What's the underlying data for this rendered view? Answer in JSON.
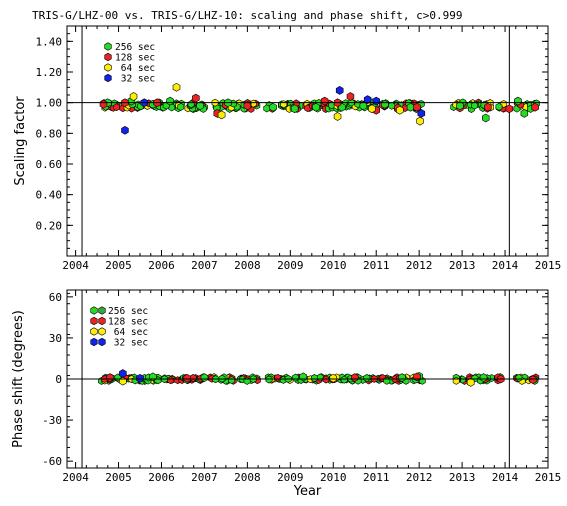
{
  "chart_data": [
    {
      "type": "scatter",
      "title": "TRIS-G/LHZ-00 vs. TRIS-G/LHZ-10: scaling and phase shift, c>0.999",
      "ylabel": "Scaling factor",
      "xlabel": "",
      "xlim": [
        2003.8,
        2015.0
      ],
      "ylim": [
        0.0,
        1.5
      ],
      "xticks": [
        "2004",
        "2005",
        "2006",
        "2007",
        "2008",
        "2009",
        "2010",
        "2011",
        "2012",
        "2013",
        "2014",
        "2015"
      ],
      "yticks": [
        "0.20",
        "0.40",
        "0.60",
        "0.80",
        "1.00",
        "1.20",
        "1.40"
      ],
      "reference_line": 1.0,
      "vlines": [
        2004.15,
        2014.1
      ],
      "legend": {
        "placement": "top-left",
        "entries": [
          {
            "label": "256 sec",
            "color": "#22dd22"
          },
          {
            "label": "128 sec",
            "color": "#ee2222"
          },
          {
            "label": " 64 sec",
            "color": "#ffee00"
          },
          {
            "label": " 32 sec",
            "color": "#1122ee"
          }
        ]
      },
      "bands": [
        [
          2004.6,
          2004.95
        ],
        [
          2004.95,
          2005.55
        ],
        [
          2005.55,
          2006.05
        ],
        [
          2006.05,
          2006.55
        ],
        [
          2006.55,
          2007.1
        ],
        [
          2007.1,
          2007.6
        ],
        [
          2007.6,
          2008.25
        ],
        [
          2008.45,
          2008.95
        ],
        [
          2008.95,
          2009.4
        ],
        [
          2009.4,
          2009.95
        ],
        [
          2009.95,
          2010.4
        ],
        [
          2010.4,
          2010.95
        ],
        [
          2010.95,
          2011.6
        ],
        [
          2011.6,
          2012.05
        ],
        [
          2012.8,
          2013.25
        ],
        [
          2013.25,
          2013.7
        ],
        [
          2013.8,
          2013.98
        ],
        [
          2014.25,
          2014.55
        ],
        [
          2014.55,
          2014.75
        ]
      ],
      "band_value": 0.98,
      "series": [
        {
          "name": "256 sec",
          "color": "#22dd22",
          "points": [
            [
              2004.75,
              1.0
            ],
            [
              2005.3,
              1.01
            ],
            [
              2005.8,
              0.99
            ],
            [
              2006.2,
              1.01
            ],
            [
              2006.9,
              0.98
            ],
            [
              2007.55,
              1.0
            ],
            [
              2008.6,
              0.97
            ],
            [
              2009.1,
              0.96
            ],
            [
              2009.6,
              0.97
            ],
            [
              2010.2,
              0.97
            ],
            [
              2010.7,
              0.98
            ],
            [
              2011.2,
              0.99
            ],
            [
              2011.8,
              0.97
            ],
            [
              2012.95,
              0.98
            ],
            [
              2013.55,
              0.9
            ],
            [
              2014.3,
              1.01
            ],
            [
              2014.45,
              0.93
            ]
          ]
        },
        {
          "name": "128 sec",
          "color": "#ee2222",
          "points": [
            [
              2004.65,
              0.99
            ],
            [
              2005.15,
              1.0
            ],
            [
              2005.9,
              1.0
            ],
            [
              2006.8,
              1.03
            ],
            [
              2007.3,
              0.93
            ],
            [
              2008.0,
              0.98
            ],
            [
              2009.8,
              1.01
            ],
            [
              2010.1,
              1.0
            ],
            [
              2010.4,
              1.04
            ],
            [
              2011.0,
              0.95
            ],
            [
              2011.95,
              0.97
            ],
            [
              2013.6,
              0.97
            ],
            [
              2014.1,
              0.96
            ],
            [
              2014.7,
              0.97
            ]
          ]
        },
        {
          "name": "64 sec",
          "color": "#ffee00",
          "points": [
            [
              2005.35,
              1.04
            ],
            [
              2006.35,
              1.1
            ],
            [
              2007.4,
              0.92
            ],
            [
              2010.1,
              0.91
            ],
            [
              2010.9,
              0.96
            ],
            [
              2011.55,
              0.95
            ],
            [
              2012.02,
              0.88
            ]
          ]
        },
        {
          "name": "32 sec",
          "color": "#1122ee",
          "points": [
            [
              2005.15,
              0.82
            ],
            [
              2005.6,
              1.0
            ],
            [
              2010.15,
              1.08
            ],
            [
              2010.8,
              1.02
            ],
            [
              2011.0,
              1.01
            ],
            [
              2012.05,
              0.93
            ]
          ]
        }
      ]
    },
    {
      "type": "scatter",
      "ylabel": "Phase shift (degrees)",
      "xlabel": "Year",
      "xlim": [
        2003.8,
        2015.0
      ],
      "ylim": [
        -65,
        65
      ],
      "xticks": [
        "2004",
        "2005",
        "2006",
        "2007",
        "2008",
        "2009",
        "2010",
        "2011",
        "2012",
        "2013",
        "2014",
        "2015"
      ],
      "yticks": [
        "-60",
        "-30",
        "0",
        "30",
        "60"
      ],
      "reference_line": 0,
      "vlines": [
        2004.15,
        2014.1
      ],
      "legend": {
        "placement": "top-left",
        "entries": [
          {
            "label": "256 sec",
            "color": "#22dd22"
          },
          {
            "label": "128 sec",
            "color": "#ee2222"
          },
          {
            "label": " 64 sec",
            "color": "#ffee00"
          },
          {
            "label": " 32 sec",
            "color": "#1122ee"
          }
        ]
      },
      "bands": [
        [
          2004.6,
          2004.95
        ],
        [
          2004.95,
          2005.55
        ],
        [
          2005.55,
          2006.05
        ],
        [
          2006.05,
          2006.55
        ],
        [
          2006.55,
          2007.1
        ],
        [
          2007.1,
          2007.6
        ],
        [
          2007.6,
          2008.25
        ],
        [
          2008.45,
          2008.95
        ],
        [
          2008.95,
          2009.4
        ],
        [
          2009.4,
          2009.95
        ],
        [
          2009.95,
          2010.4
        ],
        [
          2010.4,
          2010.95
        ],
        [
          2010.95,
          2011.6
        ],
        [
          2011.6,
          2012.1
        ],
        [
          2012.8,
          2013.25
        ],
        [
          2013.25,
          2013.7
        ],
        [
          2013.8,
          2013.98
        ],
        [
          2014.25,
          2014.55
        ],
        [
          2014.55,
          2014.75
        ]
      ],
      "band_value": 0.0,
      "series": [
        {
          "name": "256 sec",
          "color": "#22dd22",
          "points": [
            [
              2005.8,
              1.5
            ],
            [
              2007.0,
              1.0
            ],
            [
              2009.3,
              1.5
            ],
            [
              2011.6,
              1.0
            ],
            [
              2012.0,
              2.0
            ],
            [
              2013.5,
              1.0
            ]
          ]
        },
        {
          "name": "128 sec",
          "color": "#ee2222",
          "points": [
            [
              2004.8,
              1.0
            ],
            [
              2006.6,
              0.5
            ],
            [
              2010.5,
              1.0
            ],
            [
              2011.95,
              1.5
            ],
            [
              2013.9,
              0.0
            ],
            [
              2014.65,
              -0.5
            ]
          ]
        },
        {
          "name": "64 sec",
          "color": "#ffee00",
          "points": [
            [
              2005.1,
              -1.5
            ],
            [
              2010.0,
              0.5
            ],
            [
              2013.2,
              -2.5
            ]
          ]
        },
        {
          "name": "32 sec",
          "color": "#1122ee",
          "points": [
            [
              2005.1,
              4.0
            ],
            [
              2005.5,
              0.5
            ]
          ]
        }
      ]
    }
  ]
}
